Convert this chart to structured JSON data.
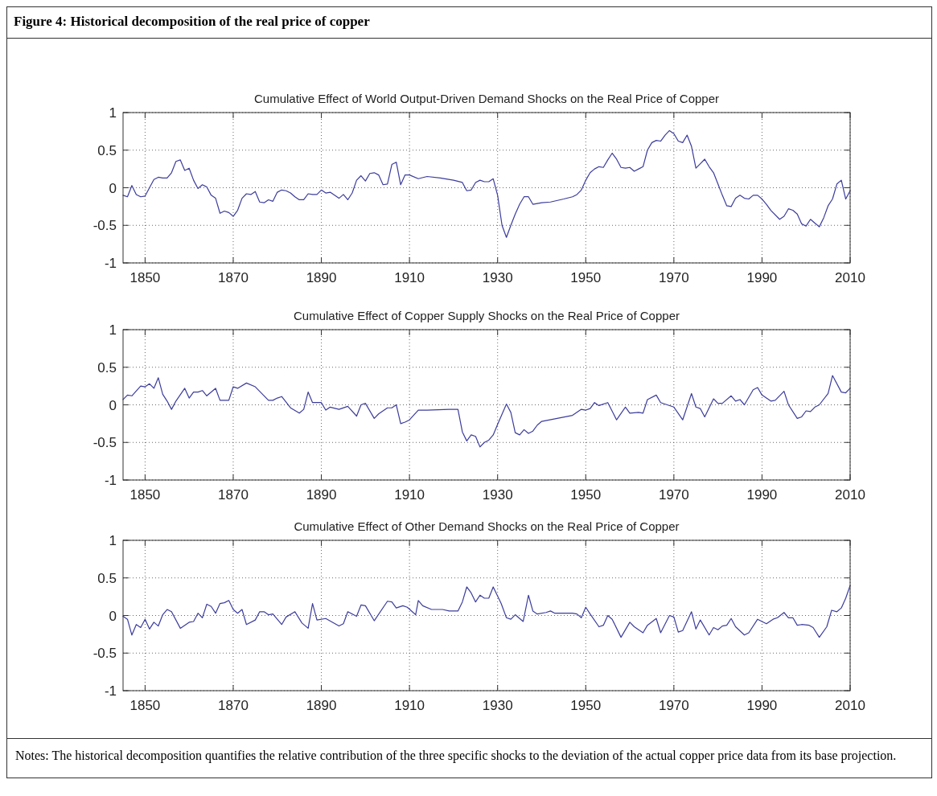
{
  "chart_data": [
    {
      "type": "line",
      "title": "Cumulative Effect of World Output-Driven Demand Shocks on the Real Price of Copper",
      "annotations": [
        "Figure 4:  Historical decomposition of the real price of copper"
      ],
      "xlim": [
        1845,
        2010
      ],
      "ylim": [
        -1,
        1
      ],
      "xticks": [
        1850,
        1870,
        1890,
        1910,
        1930,
        1950,
        1970,
        1990,
        2010
      ],
      "yticks": [
        -1,
        -0.5,
        0,
        0.5,
        1
      ],
      "grid": true,
      "line_style": "solid",
      "marker": "none",
      "x": [
        1845,
        1846,
        1847,
        1848,
        1849,
        1850,
        1851,
        1852,
        1853,
        1854,
        1855,
        1856,
        1857,
        1858,
        1859,
        1860,
        1861,
        1862,
        1863,
        1864,
        1865,
        1866,
        1867,
        1868,
        1869,
        1870,
        1871,
        1872,
        1873,
        1874,
        1875,
        1876,
        1877,
        1878,
        1879,
        1880,
        1881,
        1882,
        1883,
        1884,
        1885,
        1886,
        1887,
        1888,
        1889,
        1890,
        1891,
        1892,
        1893,
        1894,
        1895,
        1896,
        1897,
        1898,
        1899,
        1900,
        1901,
        1902,
        1903,
        1904,
        1905,
        1906,
        1907,
        1908,
        1909,
        1910,
        1912,
        1914,
        1917,
        1920,
        1922,
        1923,
        1924,
        1925,
        1926,
        1927,
        1928,
        1929,
        1930,
        1931,
        1932,
        1933,
        1934,
        1935,
        1936,
        1937,
        1938,
        1940,
        1942,
        1945,
        1947,
        1948,
        1949,
        1950,
        1951,
        1952,
        1953,
        1954,
        1955,
        1956,
        1957,
        1958,
        1959,
        1960,
        1961,
        1962,
        1963,
        1964,
        1965,
        1966,
        1967,
        1968,
        1969,
        1970,
        1971,
        1972,
        1973,
        1974,
        1975,
        1976,
        1977,
        1978,
        1979,
        1980,
        1981,
        1982,
        1983,
        1984,
        1985,
        1986,
        1987,
        1988,
        1989,
        1990,
        1991,
        1992,
        1994,
        1995,
        1996,
        1997,
        1998,
        1999,
        2000,
        2001,
        2002,
        2003,
        2004,
        2005,
        2006,
        2007,
        2008,
        2009,
        2010
      ],
      "series": [
        {
          "color": "#3c3c9c",
          "values": [
            -0.1,
            -0.12,
            0.03,
            -0.09,
            -0.12,
            -0.11,
            0.0,
            0.11,
            0.14,
            0.13,
            0.13,
            0.2,
            0.35,
            0.37,
            0.23,
            0.26,
            0.1,
            -0.01,
            0.04,
            0.01,
            -0.1,
            -0.14,
            -0.34,
            -0.31,
            -0.33,
            -0.38,
            -0.3,
            -0.14,
            -0.08,
            -0.09,
            -0.05,
            -0.19,
            -0.2,
            -0.16,
            -0.18,
            -0.06,
            -0.03,
            -0.04,
            -0.07,
            -0.12,
            -0.16,
            -0.16,
            -0.08,
            -0.09,
            -0.09,
            -0.03,
            -0.07,
            -0.06,
            -0.1,
            -0.14,
            -0.09,
            -0.16,
            -0.07,
            0.1,
            0.16,
            0.09,
            0.19,
            0.2,
            0.17,
            0.04,
            0.05,
            0.31,
            0.34,
            0.04,
            0.17,
            0.17,
            0.12,
            0.15,
            0.13,
            0.1,
            0.07,
            -0.04,
            -0.03,
            0.07,
            0.1,
            0.08,
            0.08,
            0.12,
            -0.1,
            -0.5,
            -0.66,
            -0.5,
            -0.35,
            -0.22,
            -0.12,
            -0.12,
            -0.22,
            -0.2,
            -0.19,
            -0.15,
            -0.12,
            -0.09,
            -0.03,
            0.1,
            0.2,
            0.25,
            0.28,
            0.27,
            0.37,
            0.46,
            0.38,
            0.27,
            0.26,
            0.27,
            0.22,
            0.25,
            0.28,
            0.5,
            0.6,
            0.63,
            0.62,
            0.7,
            0.76,
            0.72,
            0.62,
            0.6,
            0.7,
            0.55,
            0.26,
            0.32,
            0.38,
            0.28,
            0.2,
            0.05,
            -0.1,
            -0.24,
            -0.25,
            -0.14,
            -0.1,
            -0.14,
            -0.15,
            -0.1,
            -0.1,
            -0.15,
            -0.22,
            -0.3,
            -0.42,
            -0.38,
            -0.28,
            -0.3,
            -0.35,
            -0.48,
            -0.51,
            -0.42,
            -0.47,
            -0.52,
            -0.4,
            -0.24,
            -0.15,
            0.05,
            0.1,
            -0.15,
            -0.04
          ]
        }
      ]
    },
    {
      "type": "line",
      "title": "Cumulative Effect of Copper Supply Shocks on the Real Price of Copper",
      "xlim": [
        1845,
        2010
      ],
      "ylim": [
        -1,
        1
      ],
      "xticks": [
        1850,
        1870,
        1890,
        1910,
        1930,
        1950,
        1970,
        1990,
        2010
      ],
      "yticks": [
        -1,
        -0.5,
        0,
        0.5,
        1
      ],
      "grid": true,
      "line_style": "solid",
      "marker": "none",
      "x": [
        1845,
        1846,
        1847,
        1849,
        1850,
        1851,
        1852,
        1853,
        1854,
        1855,
        1856,
        1857,
        1859,
        1860,
        1861,
        1862,
        1863,
        1864,
        1866,
        1867,
        1869,
        1870,
        1871,
        1873,
        1875,
        1878,
        1879,
        1880,
        1881,
        1883,
        1885,
        1886,
        1887,
        1888,
        1889,
        1890,
        1891,
        1892,
        1894,
        1896,
        1898,
        1899,
        1900,
        1902,
        1903,
        1905,
        1906,
        1907,
        1908,
        1909,
        1910,
        1912,
        1914,
        1919,
        1920,
        1921,
        1922,
        1923,
        1924,
        1925,
        1926,
        1927,
        1928,
        1929,
        1930,
        1932,
        1933,
        1934,
        1935,
        1936,
        1937,
        1938,
        1939,
        1940,
        1947,
        1948,
        1949,
        1950,
        1951,
        1952,
        1953,
        1955,
        1957,
        1959,
        1960,
        1962,
        1963,
        1964,
        1966,
        1967,
        1970,
        1972,
        1974,
        1975,
        1976,
        1977,
        1979,
        1980,
        1981,
        1983,
        1984,
        1985,
        1986,
        1988,
        1989,
        1990,
        1992,
        1993,
        1995,
        1996,
        1998,
        1999,
        2000,
        2001,
        2002,
        2003,
        2005,
        2006,
        2008,
        2009,
        2010
      ],
      "series": [
        {
          "color": "#3c3c9c",
          "values": [
            0.07,
            0.13,
            0.12,
            0.25,
            0.24,
            0.28,
            0.22,
            0.36,
            0.14,
            0.05,
            -0.06,
            0.05,
            0.22,
            0.09,
            0.17,
            0.17,
            0.19,
            0.12,
            0.22,
            0.06,
            0.06,
            0.24,
            0.22,
            0.29,
            0.24,
            0.06,
            0.06,
            0.09,
            0.11,
            -0.04,
            -0.11,
            -0.06,
            0.17,
            0.03,
            0.03,
            0.03,
            -0.07,
            -0.03,
            -0.06,
            -0.02,
            -0.15,
            0.0,
            0.02,
            -0.18,
            -0.12,
            -0.04,
            -0.04,
            0.0,
            -0.25,
            -0.23,
            -0.2,
            -0.07,
            -0.07,
            -0.06,
            -0.06,
            -0.06,
            -0.36,
            -0.48,
            -0.4,
            -0.42,
            -0.56,
            -0.5,
            -0.47,
            -0.4,
            -0.26,
            0.01,
            -0.1,
            -0.37,
            -0.4,
            -0.33,
            -0.38,
            -0.35,
            -0.27,
            -0.22,
            -0.14,
            -0.1,
            -0.06,
            -0.07,
            -0.05,
            0.03,
            -0.01,
            0.03,
            -0.2,
            -0.03,
            -0.11,
            -0.1,
            -0.11,
            0.07,
            0.13,
            0.03,
            -0.03,
            -0.2,
            0.15,
            -0.03,
            -0.05,
            -0.16,
            0.08,
            0.02,
            0.02,
            0.12,
            0.05,
            0.07,
            0.0,
            0.2,
            0.23,
            0.13,
            0.05,
            0.06,
            0.18,
            0.0,
            -0.18,
            -0.16,
            -0.08,
            -0.09,
            -0.03,
            0.0,
            0.15,
            0.39,
            0.17,
            0.16,
            0.22
          ]
        }
      ]
    },
    {
      "type": "line",
      "title": "Cumulative Effect of Other Demand Shocks on the Real Price of Copper",
      "annotations": [
        "Notes: The historical decomposition quantifies the relative contribution of the three specific shocks to the deviation of the actual copper price data from its base projection."
      ],
      "xlim": [
        1845,
        2010
      ],
      "ylim": [
        -1,
        1
      ],
      "xticks": [
        1850,
        1870,
        1890,
        1910,
        1930,
        1950,
        1970,
        1990,
        2010
      ],
      "yticks": [
        -1,
        -0.5,
        0,
        0.5,
        1
      ],
      "grid": true,
      "line_style": "solid",
      "marker": "none",
      "x": [
        1845,
        1846,
        1847,
        1848,
        1849,
        1850,
        1851,
        1852,
        1853,
        1854,
        1855,
        1856,
        1858,
        1860,
        1861,
        1862,
        1863,
        1864,
        1865,
        1866,
        1867,
        1868,
        1869,
        1870,
        1871,
        1872,
        1873,
        1875,
        1876,
        1877,
        1878,
        1879,
        1881,
        1882,
        1884,
        1885.6,
        1887,
        1888,
        1889,
        1891,
        1894,
        1895,
        1896,
        1898,
        1899,
        1900,
        1902,
        1905,
        1906,
        1907,
        1908.5,
        1909.5,
        1911.4,
        1912,
        1913,
        1915,
        1917.5,
        1919,
        1921,
        1922,
        1923,
        1924,
        1925,
        1926,
        1927,
        1928,
        1929,
        1930.8,
        1932,
        1933,
        1934,
        1935.8,
        1937,
        1938,
        1939,
        1941,
        1942,
        1943,
        1947,
        1948,
        1949,
        1950,
        1951,
        1953,
        1954,
        1955,
        1956,
        1958,
        1960,
        1961,
        1963,
        1964,
        1966,
        1967,
        1969,
        1970,
        1971,
        1972,
        1974,
        1975,
        1976,
        1978,
        1979,
        1980,
        1981,
        1982,
        1983,
        1984,
        1986,
        1987,
        1989,
        1991,
        1992.5,
        1993.5,
        1995,
        1996,
        1997,
        1998,
        1999,
        2000.7,
        2001.6,
        2003,
        2004.7,
        2005.8,
        2007,
        2008,
        2009,
        2010
      ],
      "series": [
        {
          "color": "#3c3c9c",
          "values": [
            -0.01,
            -0.05,
            -0.26,
            -0.12,
            -0.16,
            -0.05,
            -0.18,
            -0.09,
            -0.14,
            0.01,
            0.08,
            0.05,
            -0.17,
            -0.09,
            -0.08,
            0.03,
            -0.03,
            0.15,
            0.12,
            0.03,
            0.16,
            0.17,
            0.2,
            0.08,
            0.03,
            0.08,
            -0.12,
            -0.06,
            0.05,
            0.05,
            0.01,
            0.02,
            -0.12,
            -0.02,
            0.05,
            -0.1,
            -0.17,
            0.16,
            -0.06,
            -0.04,
            -0.14,
            -0.11,
            0.05,
            -0.01,
            0.14,
            0.13,
            -0.07,
            0.19,
            0.18,
            0.1,
            0.13,
            0.11,
            0.01,
            0.2,
            0.13,
            0.08,
            0.08,
            0.06,
            0.06,
            0.18,
            0.38,
            0.3,
            0.18,
            0.27,
            0.23,
            0.23,
            0.38,
            0.16,
            -0.03,
            -0.05,
            0.01,
            -0.08,
            0.27,
            0.06,
            0.02,
            0.04,
            0.06,
            0.03,
            0.03,
            0.02,
            -0.03,
            0.11,
            0.02,
            -0.15,
            -0.13,
            0.0,
            -0.05,
            -0.29,
            -0.09,
            -0.15,
            -0.23,
            -0.13,
            -0.04,
            -0.23,
            0.0,
            -0.02,
            -0.22,
            -0.2,
            0.05,
            -0.18,
            -0.06,
            -0.26,
            -0.16,
            -0.19,
            -0.14,
            -0.13,
            -0.04,
            -0.15,
            -0.26,
            -0.23,
            -0.05,
            -0.11,
            -0.05,
            -0.03,
            0.04,
            -0.03,
            -0.03,
            -0.13,
            -0.12,
            -0.13,
            -0.16,
            -0.29,
            -0.15,
            0.07,
            0.05,
            0.1,
            0.23,
            0.4
          ]
        }
      ]
    }
  ]
}
